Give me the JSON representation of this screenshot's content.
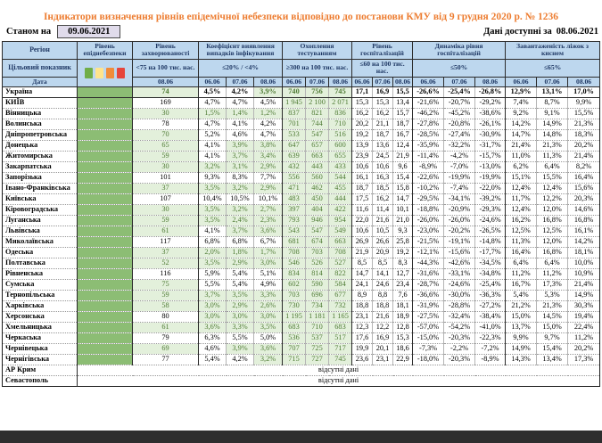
{
  "page": {
    "title": "Індикатори визначення рівнів епідемічної небезпеки відповідно до постанови КМУ від 9 грудня 2020 р. № 1236",
    "as_of_label": "Станом на",
    "as_of_date": "09.06.2021",
    "available_label": "Дані доступні за",
    "available_date": "08.06.2021"
  },
  "colors": {
    "title": "#ED7D31",
    "header_bg": "#BDD7EE",
    "header_text": "#1F3864",
    "level_green": "#8CBD74",
    "ok_bg": "#E3F0DB",
    "ok_text": "#4F7B35",
    "asof_bg": "#E0DBEB",
    "legend": [
      "#70AD47",
      "#FFE48C",
      "#F08C3A",
      "#E6453C"
    ]
  },
  "table": {
    "corner": {
      "region": "Регіон",
      "target": "Цільовий показник",
      "date": "Дата"
    },
    "groups": [
      {
        "label": "Рівень епіднебезпеки",
        "target": "",
        "cols": 1,
        "legend": true,
        "dates": []
      },
      {
        "label": "Рівень захворюваності",
        "target": "<75 на 100 тис. нас.",
        "cols": 1,
        "dates": [
          "08.06"
        ]
      },
      {
        "label": "Коефіцієнт виявлення випадків інфікування",
        "target": "≤20% / <4%",
        "cols": 3,
        "dates": [
          "06.06",
          "07.06",
          "08.06"
        ]
      },
      {
        "label": "Охоплення тестуванням",
        "target": "≥300 на 100 тис. нас.",
        "cols": 3,
        "dates": [
          "06.06",
          "07.06",
          "08.06"
        ]
      },
      {
        "label": "Рівень госпіталізацій",
        "target": "≤60 на 100 тис. нас.",
        "cols": 3,
        "dates": [
          "06.06",
          "07.06",
          "08.06"
        ]
      },
      {
        "label": "Динаміка рівня госпіталізацій",
        "target": "≤50%",
        "cols": 3,
        "dates": [
          "06.06",
          "07.06",
          "08.06"
        ]
      },
      {
        "label": "Завантаженість ліжок з киснем",
        "target": "≤65%",
        "cols": 3,
        "dates": [
          "06.06",
          "07.06",
          "08.06"
        ]
      }
    ],
    "rows": [
      {
        "region": "Україна",
        "bold": true,
        "values": [
          "74",
          "4,5%",
          "4,2%",
          "3,9%",
          "740",
          "756",
          "745",
          "17,1",
          "16,9",
          "15,5",
          "-26,6%",
          "-25,4%",
          "-26,8%",
          "12,9%",
          "13,1%",
          "17,0%"
        ],
        "green": [
          1,
          0,
          0,
          1,
          1,
          1,
          1
        ]
      },
      {
        "region": "КИЇВ",
        "values": [
          "169",
          "4,7%",
          "4,7%",
          "4,5%",
          "1 945",
          "2 100",
          "2 071",
          "15,3",
          "15,3",
          "13,4",
          "-21,6%",
          "-20,7%",
          "-29,2%",
          "7,4%",
          "8,7%",
          "9,9%"
        ],
        "green": [
          0,
          0,
          0,
          0,
          1,
          1,
          1
        ]
      },
      {
        "region": "Вінницька",
        "values": [
          "30",
          "1,5%",
          "1,4%",
          "1,2%",
          "837",
          "821",
          "836",
          "16,2",
          "16,2",
          "15,7",
          "-46,2%",
          "-45,2%",
          "-38,6%",
          "9,2%",
          "9,1%",
          "15,5%"
        ],
        "green": [
          1,
          1,
          1,
          1,
          1,
          1,
          1
        ]
      },
      {
        "region": "Волинська",
        "values": [
          "78",
          "4,7%",
          "4,1%",
          "4,2%",
          "701",
          "744",
          "710",
          "20,2",
          "21,1",
          "18,7",
          "-27,8%",
          "-20,8%",
          "-26,1%",
          "14,2%",
          "14,9%",
          "21,3%"
        ],
        "green": [
          0,
          0,
          0,
          0,
          1,
          1,
          1
        ]
      },
      {
        "region": "Дніпропетровська",
        "values": [
          "70",
          "5,2%",
          "4,6%",
          "4,7%",
          "533",
          "547",
          "516",
          "19,2",
          "18,7",
          "16,7",
          "-28,5%",
          "-27,4%",
          "-30,9%",
          "14,7%",
          "14,8%",
          "18,3%"
        ],
        "green": [
          1,
          0,
          0,
          0,
          1,
          1,
          1
        ]
      },
      {
        "region": "Донецька",
        "values": [
          "65",
          "4,1%",
          "3,9%",
          "3,8%",
          "647",
          "657",
          "600",
          "13,9",
          "13,6",
          "12,4",
          "-35,9%",
          "-32,2%",
          "-31,7%",
          "21,4%",
          "21,3%",
          "20,2%"
        ],
        "green": [
          1,
          0,
          1,
          1,
          1,
          1,
          1
        ]
      },
      {
        "region": "Житомирська",
        "values": [
          "59",
          "4,1%",
          "3,7%",
          "3,4%",
          "639",
          "663",
          "655",
          "23,9",
          "24,5",
          "21,9",
          "-11,4%",
          "-4,2%",
          "-15,7%",
          "11,0%",
          "11,3%",
          "21,4%"
        ],
        "green": [
          1,
          0,
          1,
          1,
          1,
          1,
          1
        ]
      },
      {
        "region": "Закарпатська",
        "values": [
          "30",
          "3,2%",
          "3,1%",
          "2,9%",
          "432",
          "443",
          "433",
          "10,6",
          "10,6",
          "9,6",
          "-8,9%",
          "-7,0%",
          "-13,0%",
          "6,2%",
          "6,4%",
          "8,2%"
        ],
        "green": [
          1,
          1,
          1,
          1,
          1,
          1,
          1
        ]
      },
      {
        "region": "Запорізька",
        "values": [
          "101",
          "9,3%",
          "8,3%",
          "7,7%",
          "556",
          "560",
          "544",
          "16,1",
          "16,3",
          "15,4",
          "-22,6%",
          "-19,9%",
          "-19,9%",
          "15,1%",
          "15,5%",
          "16,4%"
        ],
        "green": [
          0,
          0,
          0,
          0,
          1,
          1,
          1
        ]
      },
      {
        "region": "Івано-Франківська",
        "values": [
          "37",
          "3,5%",
          "3,2%",
          "2,9%",
          "471",
          "462",
          "455",
          "18,7",
          "18,5",
          "15,8",
          "-10,2%",
          "-7,4%",
          "-22,0%",
          "12,4%",
          "12,4%",
          "15,6%"
        ],
        "green": [
          1,
          1,
          1,
          1,
          1,
          1,
          1
        ]
      },
      {
        "region": "Київська",
        "values": [
          "107",
          "10,4%",
          "10,5%",
          "10,1%",
          "483",
          "450",
          "444",
          "17,5",
          "16,2",
          "14,7",
          "-29,5%",
          "-34,1%",
          "-39,2%",
          "11,7%",
          "12,2%",
          "20,3%"
        ],
        "green": [
          0,
          0,
          0,
          0,
          1,
          1,
          1
        ]
      },
      {
        "region": "Кіровоградська",
        "values": [
          "30",
          "3,5%",
          "3,2%",
          "2,7%",
          "397",
          "404",
          "422",
          "11,6",
          "11,4",
          "10,1",
          "-18,8%",
          "-20,9%",
          "-29,3%",
          "12,4%",
          "12,0%",
          "14,6%"
        ],
        "green": [
          1,
          1,
          1,
          1,
          1,
          1,
          1
        ]
      },
      {
        "region": "Луганська",
        "values": [
          "59",
          "3,5%",
          "2,4%",
          "2,3%",
          "793",
          "946",
          "954",
          "22,0",
          "21,6",
          "21,0",
          "-26,0%",
          "-26,0%",
          "-24,6%",
          "16,2%",
          "16,8%",
          "16,8%"
        ],
        "green": [
          1,
          1,
          1,
          1,
          1,
          1,
          1
        ]
      },
      {
        "region": "Львівська",
        "values": [
          "61",
          "4,1%",
          "3,7%",
          "3,6%",
          "543",
          "547",
          "549",
          "10,6",
          "10,5",
          "9,3",
          "-23,0%",
          "-20,2%",
          "-26,5%",
          "12,5%",
          "12,5%",
          "16,1%"
        ],
        "green": [
          1,
          0,
          1,
          1,
          1,
          1,
          1
        ]
      },
      {
        "region": "Миколаївська",
        "values": [
          "117",
          "6,8%",
          "6,8%",
          "6,7%",
          "681",
          "674",
          "663",
          "26,9",
          "26,6",
          "25,8",
          "-21,5%",
          "-19,1%",
          "-14,8%",
          "11,3%",
          "12,0%",
          "14,2%"
        ],
        "green": [
          0,
          0,
          0,
          0,
          1,
          1,
          1
        ]
      },
      {
        "region": "Одеська",
        "values": [
          "37",
          "2,0%",
          "1,8%",
          "1,7%",
          "708",
          "703",
          "708",
          "21,9",
          "20,9",
          "19,2",
          "-12,1%",
          "-15,6%",
          "-17,7%",
          "16,4%",
          "16,8%",
          "18,1%"
        ],
        "green": [
          1,
          1,
          1,
          1,
          1,
          1,
          1
        ]
      },
      {
        "region": "Полтавська",
        "values": [
          "52",
          "3,5%",
          "2,9%",
          "3,0%",
          "546",
          "526",
          "527",
          "8,5",
          "8,5",
          "8,3",
          "-44,3%",
          "-42,6%",
          "-34,5%",
          "6,4%",
          "6,4%",
          "10,0%"
        ],
        "green": [
          1,
          1,
          1,
          1,
          1,
          1,
          1
        ]
      },
      {
        "region": "Рівненська",
        "values": [
          "116",
          "5,9%",
          "5,4%",
          "5,1%",
          "834",
          "814",
          "822",
          "14,7",
          "14,1",
          "12,7",
          "-31,6%",
          "-33,1%",
          "-34,8%",
          "11,2%",
          "11,2%",
          "10,9%"
        ],
        "green": [
          0,
          0,
          0,
          0,
          1,
          1,
          1
        ]
      },
      {
        "region": "Сумська",
        "values": [
          "75",
          "5,5%",
          "5,4%",
          "4,9%",
          "602",
          "590",
          "584",
          "24,1",
          "24,6",
          "23,4",
          "-28,7%",
          "-24,6%",
          "-25,4%",
          "16,7%",
          "17,3%",
          "21,4%"
        ],
        "green": [
          1,
          0,
          0,
          0,
          1,
          1,
          1
        ]
      },
      {
        "region": "Тернопільська",
        "values": [
          "59",
          "3,7%",
          "3,5%",
          "3,3%",
          "703",
          "696",
          "677",
          "8,9",
          "8,8",
          "7,6",
          "-36,6%",
          "-30,0%",
          "-36,3%",
          "5,4%",
          "5,3%",
          "14,9%"
        ],
        "green": [
          1,
          1,
          1,
          1,
          1,
          1,
          1
        ]
      },
      {
        "region": "Харківська",
        "values": [
          "58",
          "3,0%",
          "2,9%",
          "2,6%",
          "730",
          "734",
          "732",
          "18,8",
          "18,8",
          "18,1",
          "-31,9%",
          "-28,8%",
          "-27,2%",
          "21,2%",
          "21,3%",
          "30,3%"
        ],
        "green": [
          1,
          1,
          1,
          1,
          1,
          1,
          1
        ]
      },
      {
        "region": "Херсонська",
        "values": [
          "80",
          "3,0%",
          "3,0%",
          "3,0%",
          "1 195",
          "1 181",
          "1 165",
          "23,1",
          "21,6",
          "18,9",
          "-27,5%",
          "-32,4%",
          "-38,4%",
          "15,0%",
          "14,5%",
          "19,4%"
        ],
        "green": [
          0,
          1,
          1,
          1,
          1,
          1,
          1
        ]
      },
      {
        "region": "Хмельницька",
        "values": [
          "61",
          "3,6%",
          "3,3%",
          "3,5%",
          "683",
          "710",
          "683",
          "12,3",
          "12,2",
          "12,8",
          "-57,0%",
          "-54,2%",
          "-41,0%",
          "13,7%",
          "15,0%",
          "22,4%"
        ],
        "green": [
          1,
          1,
          1,
          1,
          1,
          1,
          1
        ]
      },
      {
        "region": "Черкаська",
        "values": [
          "79",
          "6,3%",
          "5,5%",
          "5,0%",
          "536",
          "537",
          "517",
          "17,6",
          "16,9",
          "15,3",
          "-15,0%",
          "-20,3%",
          "-22,3%",
          "9,9%",
          "9,7%",
          "11,2%"
        ],
        "green": [
          0,
          0,
          0,
          0,
          1,
          1,
          1
        ]
      },
      {
        "region": "Чернівецька",
        "values": [
          "69",
          "4,6%",
          "3,9%",
          "3,6%",
          "707",
          "725",
          "717",
          "19,9",
          "20,1",
          "18,6",
          "-7,3%",
          "-2,2%",
          "-7,2%",
          "14,9%",
          "15,4%",
          "20,2%"
        ],
        "green": [
          1,
          0,
          1,
          1,
          1,
          1,
          1
        ]
      },
      {
        "region": "Чернігівська",
        "values": [
          "77",
          "5,4%",
          "4,2%",
          "3,2%",
          "715",
          "727",
          "745",
          "23,6",
          "23,1",
          "22,9",
          "-18,0%",
          "-20,3%",
          "-8,9%",
          "14,3%",
          "13,4%",
          "17,3%"
        ],
        "green": [
          0,
          0,
          0,
          1,
          1,
          1,
          1
        ]
      }
    ],
    "no_data_rows": [
      {
        "region": "АР Крим",
        "text": "відсутні дані"
      },
      {
        "region": "Севастополь",
        "text": "відсутні дані"
      }
    ]
  }
}
